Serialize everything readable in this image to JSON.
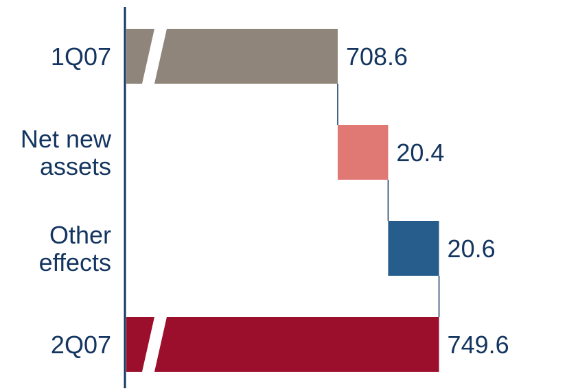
{
  "chart_data": {
    "type": "waterfall",
    "categories": [
      "1Q07",
      "Net new assets",
      "Other effects",
      "2Q07"
    ],
    "category_label_lines": [
      [
        "1Q07"
      ],
      [
        "Net new",
        "assets"
      ],
      [
        "Other",
        "effects"
      ],
      [
        "2Q07"
      ]
    ],
    "values": [
      708.6,
      20.4,
      20.6,
      749.6
    ],
    "value_labels": [
      "708.6",
      "20.4",
      "20.6",
      "749.6"
    ],
    "bar_kinds": [
      "total",
      "delta",
      "delta",
      "total"
    ],
    "axis_break_on_totals": true,
    "title": "",
    "xlabel": "",
    "ylabel": "",
    "grid": false,
    "legend": "none",
    "colors": {
      "start_total": "#8f857a",
      "net_new_assets": "#e07873",
      "other_effects": "#275d8c",
      "end_total": "#9b0f2c",
      "axis": "#13355f",
      "text": "#13355f",
      "break": "#ffffff"
    }
  }
}
